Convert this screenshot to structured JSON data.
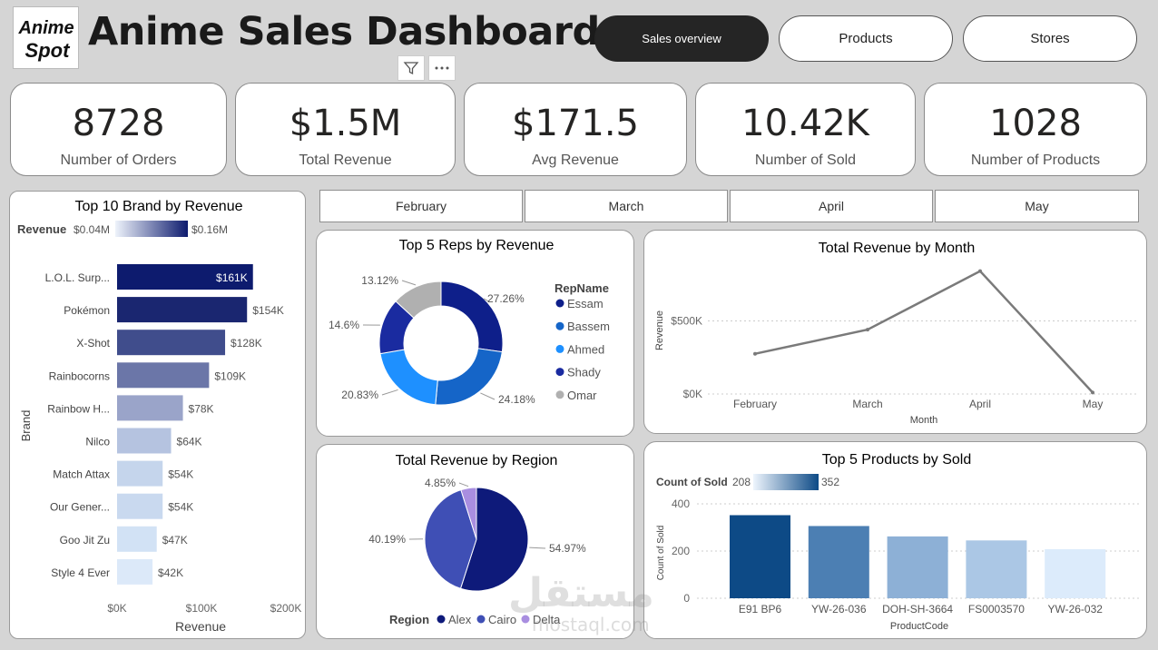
{
  "header": {
    "logo_text_line1": "Anime",
    "logo_text_line2": "Spot",
    "title": "Anime Sales Dashboard",
    "nav": [
      {
        "label": "Sales overview",
        "active": true
      },
      {
        "label": "Products",
        "active": false
      },
      {
        "label": "Stores",
        "active": false
      }
    ],
    "tools": [
      "filter-icon",
      "more-options-icon"
    ]
  },
  "kpis": [
    {
      "value": "8728",
      "label": "Number of Orders"
    },
    {
      "value": "$1.5M",
      "label": "Total Revenue"
    },
    {
      "value": "$171.5",
      "label": "Avg Revenue"
    },
    {
      "value": "10.42K",
      "label": "Number of Sold"
    },
    {
      "value": "1028",
      "label": "Number of Products"
    }
  ],
  "month_slicer": [
    "February",
    "March",
    "April",
    "May"
  ],
  "watermark": {
    "arabic": "مستقل",
    "latin": "mostaql.com"
  },
  "chart_data": [
    {
      "id": "brand",
      "type": "bar",
      "orientation": "horizontal",
      "title": "Top 10 Brand by Revenue",
      "legend_title": "Revenue",
      "legend_min": "$0.04M",
      "legend_max": "$0.16M",
      "xlabel": "Revenue",
      "ylabel": "Brand",
      "xlim": [
        0,
        200000
      ],
      "xticks": [
        "$0K",
        "$100K",
        "$200K"
      ],
      "categories": [
        "L.O.L. Surp...",
        "Pokémon",
        "X-Shot",
        "Rainbocorns",
        "Rainbow H...",
        "Nilco",
        "Match Attax",
        "Our Gener...",
        "Goo Jit Zu",
        "Style 4 Ever"
      ],
      "values": [
        161000,
        154000,
        128000,
        109000,
        78000,
        64000,
        54000,
        54000,
        47000,
        42000
      ],
      "labels": [
        "$161K",
        "$154K",
        "$128K",
        "$109K",
        "$78K",
        "$64K",
        "$54K",
        "$54K",
        "$47K",
        "$42K"
      ],
      "colors": [
        "#0d1b6e",
        "#1a2670",
        "#404d8c",
        "#6b76a8",
        "#9aa4c9",
        "#b5c3e0",
        "#c5d5ec",
        "#c9d9ef",
        "#d2e2f5",
        "#dce9f9"
      ]
    },
    {
      "id": "reps",
      "type": "pie",
      "variant": "donut",
      "title": "Top 5 Reps by Revenue",
      "legend_title": "RepName",
      "categories": [
        "Essam",
        "Bassem",
        "Ahmed",
        "Shady",
        "Omar"
      ],
      "values": [
        27.26,
        24.18,
        20.83,
        14.6,
        13.12
      ],
      "labels": [
        "27.26%",
        "24.18%",
        "20.83%",
        "14.6%",
        "13.12%"
      ],
      "colors": [
        "#0e1f8a",
        "#1565c8",
        "#1e90ff",
        "#1a2ba0",
        "#b0b0b0"
      ]
    },
    {
      "id": "month",
      "type": "line",
      "title": "Total Revenue by Month",
      "xlabel": "Month",
      "ylabel": "Revenue",
      "categories": [
        "February",
        "March",
        "April",
        "May"
      ],
      "values": [
        275000,
        440000,
        840000,
        10000
      ],
      "ylim": [
        0,
        900000
      ],
      "yticks": [
        {
          "v": 0,
          "label": "$0K"
        },
        {
          "v": 500000,
          "label": "$500K"
        }
      ],
      "color": "#7a7a7a"
    },
    {
      "id": "region",
      "type": "pie",
      "title": "Total Revenue by Region",
      "legend_title": "Region",
      "categories": [
        "Alex",
        "Cairo",
        "Delta"
      ],
      "values": [
        54.97,
        40.19,
        4.85
      ],
      "labels": [
        "54.97%",
        "40.19%",
        "4.85%"
      ],
      "colors": [
        "#0e1a7a",
        "#3f4fb5",
        "#a98ee0"
      ]
    },
    {
      "id": "products",
      "type": "bar",
      "title": "Top 5 Products by Sold",
      "legend_title": "Count of Sold",
      "legend_min": "208",
      "legend_max": "352",
      "xlabel": "ProductCode",
      "ylabel": "Count of Sold",
      "ylim": [
        0,
        400
      ],
      "yticks": [
        0,
        200,
        400
      ],
      "categories": [
        "E91 BP6",
        "YW-26-036",
        "DOH-SH-3664",
        "FS0003570",
        "YW-26-032"
      ],
      "values": [
        352,
        306,
        262,
        245,
        208
      ],
      "colors": [
        "#0d4a86",
        "#4c7fb3",
        "#8db0d6",
        "#abc7e5",
        "#dcebfb"
      ]
    }
  ]
}
